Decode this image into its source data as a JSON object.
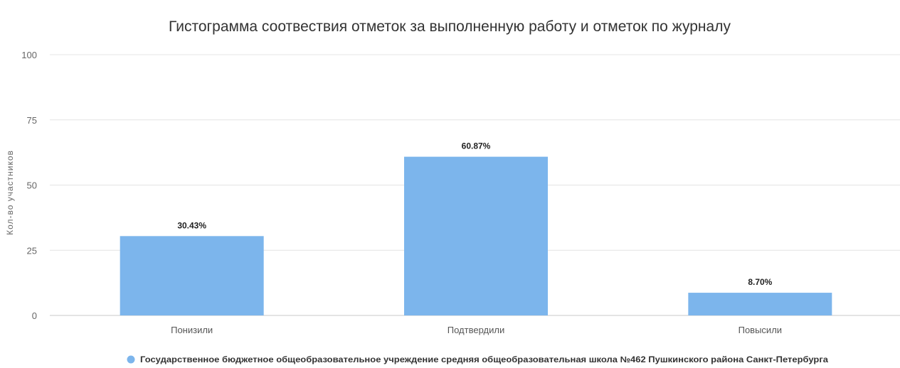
{
  "chart_data": {
    "type": "bar",
    "title": "Гистограмма соотвествия отметок за выполненную работу и отметок по журналу",
    "xlabel": "",
    "ylabel": "Кол-во участников",
    "ylim": [
      0,
      100
    ],
    "yticks": [
      0,
      25,
      50,
      75,
      100
    ],
    "categories": [
      "Понизили",
      "Подтвердили",
      "Повысили"
    ],
    "series": [
      {
        "name": "Государственное бюджетное общеобразовательное учреждение средняя общеобразовательная школа №462 Пушкинского района Санкт-Петербурга",
        "values": [
          30.43,
          60.87,
          8.7
        ],
        "labels": [
          "30.43%",
          "60.87%",
          "8.70%"
        ],
        "color": "#7cb5ec"
      }
    ],
    "grid": true,
    "legend_position": "bottom-center"
  }
}
